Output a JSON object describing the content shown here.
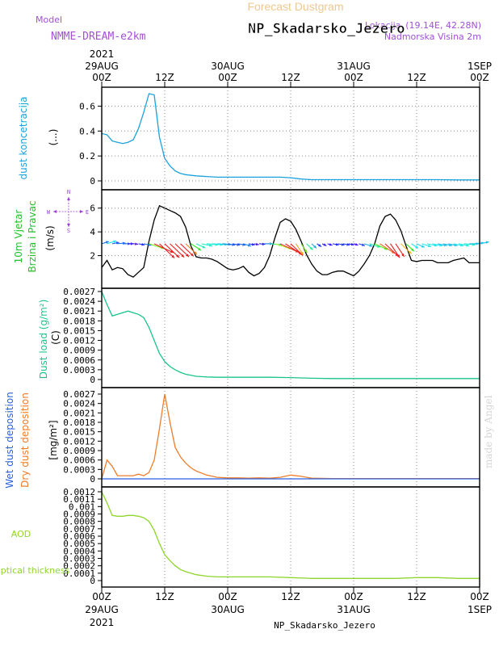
{
  "header": {
    "title_top": "Forecast Dustgram",
    "station": "NP_Skadarsko_Jezero",
    "model_label": "Model",
    "model_name": "NMME-DREAM-e2km",
    "location_prefix": "Lokacija",
    "coords": "(19.14E, 42.28N)",
    "altitude": "Nadmorska Visina 2m",
    "year": "2021",
    "credit": "made by Angel",
    "station_bottom": "NP_Skadarsko_Jezero"
  },
  "time_axis": {
    "ticks": [
      {
        "t": 0,
        "top": "00Z",
        "bottom": "29AUG"
      },
      {
        "t": 12,
        "top": "12Z",
        "bottom": ""
      },
      {
        "t": 24,
        "top": "00Z",
        "bottom": "30AUG"
      },
      {
        "t": 36,
        "top": "12Z",
        "bottom": ""
      },
      {
        "t": 48,
        "top": "00Z",
        "bottom": "31AUG"
      },
      {
        "t": 60,
        "top": "12Z",
        "bottom": ""
      },
      {
        "t": 72,
        "top": "00Z",
        "bottom": "1SEP"
      }
    ]
  },
  "colors": {
    "concentration": "#1ba3dd",
    "wind_speed": "#000000",
    "dust_load": "#19c48c",
    "dry_deposition": "#ee7d2b",
    "wet_deposition": "#2a62e0",
    "aod": "#8fd62c",
    "model_text": "#a34fd6",
    "title_top": "#f0c890",
    "wind_label": "#22c02a",
    "credit": "#d4d4d4",
    "compass": "#9b40d6"
  },
  "compass": {
    "n": "N",
    "s": "S",
    "w": "W",
    "e": "E"
  },
  "chart_data": [
    {
      "type": "line",
      "label": "dust koncetracija",
      "unit": "(...)",
      "ylim": [
        0,
        0.7
      ],
      "yticks": [
        "0",
        "0.2",
        "0.4",
        "0.6"
      ],
      "xlim": [
        0,
        72
      ],
      "x": [
        0,
        1,
        2,
        3,
        4,
        5,
        6,
        7,
        8,
        9,
        10,
        11,
        12,
        13,
        14,
        15,
        16,
        18,
        20,
        22,
        24,
        26,
        28,
        30,
        32,
        34,
        36,
        38,
        40,
        44,
        48,
        52,
        56,
        60,
        64,
        68,
        72
      ],
      "values": [
        0.38,
        0.37,
        0.32,
        0.31,
        0.3,
        0.31,
        0.33,
        0.42,
        0.55,
        0.7,
        0.69,
        0.35,
        0.18,
        0.12,
        0.08,
        0.06,
        0.05,
        0.04,
        0.035,
        0.03,
        0.03,
        0.03,
        0.03,
        0.03,
        0.03,
        0.03,
        0.025,
        0.015,
        0.01,
        0.01,
        0.01,
        0.01,
        0.01,
        0.01,
        0.01,
        0.008,
        0.008
      ]
    },
    {
      "type": "line",
      "label": "10m Vjetar Brzina i Pravac",
      "label_lines": [
        "10m Vjetar",
        "Brzina i Pravac"
      ],
      "unit": "(m/s)",
      "ylim": [
        0,
        7
      ],
      "yticks": [
        "2",
        "4",
        "6"
      ],
      "xlim": [
        0,
        72
      ],
      "x": [
        0,
        1,
        2,
        3,
        4,
        5,
        6,
        7,
        8,
        9,
        10,
        11,
        12,
        13,
        14,
        15,
        16,
        17,
        18,
        19,
        20,
        21,
        22,
        23,
        24,
        25,
        26,
        27,
        28,
        29,
        30,
        31,
        32,
        33,
        34,
        35,
        36,
        37,
        38,
        39,
        40,
        41,
        42,
        43,
        44,
        45,
        46,
        47,
        48,
        49,
        50,
        51,
        52,
        53,
        54,
        55,
        56,
        57,
        58,
        59,
        60,
        61,
        62,
        63,
        64,
        65,
        66,
        67,
        68,
        69,
        70,
        71,
        72
      ],
      "values": [
        1.0,
        1.6,
        0.8,
        1.0,
        0.9,
        0.4,
        0.2,
        0.6,
        1.0,
        3.2,
        5.0,
        6.2,
        6.0,
        5.8,
        5.6,
        5.3,
        4.4,
        2.8,
        1.9,
        1.8,
        1.8,
        1.7,
        1.5,
        1.2,
        0.9,
        0.8,
        0.9,
        1.1,
        0.6,
        0.3,
        0.5,
        1.0,
        2.0,
        3.5,
        4.8,
        5.1,
        4.9,
        4.2,
        3.2,
        2.1,
        1.3,
        0.7,
        0.4,
        0.4,
        0.6,
        0.7,
        0.7,
        0.5,
        0.3,
        0.7,
        1.3,
        2.0,
        3.0,
        4.5,
        5.3,
        5.5,
        5.0,
        4.1,
        2.8,
        1.6,
        1.5,
        1.6,
        1.6,
        1.6,
        1.4,
        1.4,
        1.4,
        1.6,
        1.7,
        1.8,
        1.4,
        1.4,
        1.4
      ],
      "wind_arrows": {
        "x": [
          0,
          1,
          2,
          3,
          4,
          5,
          6,
          7,
          8,
          9,
          10,
          11,
          12,
          13,
          14,
          15,
          16,
          17,
          18,
          19,
          20,
          21,
          22,
          23,
          24,
          25,
          26,
          27,
          28,
          29,
          30,
          31,
          32,
          33,
          34,
          35,
          36,
          37,
          38,
          39,
          40,
          41,
          42,
          43,
          44,
          45,
          46,
          47,
          48,
          49,
          50,
          51,
          52,
          53,
          54,
          55,
          56,
          57,
          58,
          59,
          60,
          61,
          62,
          63,
          64,
          65,
          66,
          67,
          68,
          69,
          70,
          71,
          72
        ],
        "dir_deg": [
          300,
          300,
          290,
          280,
          270,
          270,
          260,
          250,
          250,
          240,
          230,
          210,
          210,
          210,
          210,
          210,
          210,
          220,
          230,
          250,
          260,
          260,
          260,
          260,
          250,
          250,
          250,
          240,
          250,
          250,
          260,
          270,
          260,
          240,
          230,
          220,
          210,
          200,
          200,
          210,
          210,
          220,
          230,
          240,
          250,
          250,
          250,
          250,
          240,
          240,
          240,
          240,
          230,
          220,
          210,
          200,
          200,
          210,
          210,
          220,
          230,
          240,
          250,
          250,
          250,
          250,
          250,
          250,
          250,
          260,
          270,
          280,
          290
        ],
        "speed": [
          1.0,
          1.6,
          0.8,
          1.0,
          0.9,
          0.4,
          0.2,
          0.6,
          1.0,
          3.2,
          5.0,
          6.2,
          6.0,
          5.8,
          5.6,
          5.3,
          4.4,
          2.8,
          1.9,
          1.8,
          1.8,
          1.7,
          1.5,
          1.2,
          0.9,
          0.8,
          0.9,
          1.1,
          0.6,
          0.3,
          0.5,
          1.0,
          2.0,
          3.5,
          4.8,
          5.1,
          4.9,
          4.2,
          3.2,
          2.1,
          1.3,
          0.7,
          0.4,
          0.4,
          0.6,
          0.7,
          0.7,
          0.5,
          0.3,
          0.7,
          1.3,
          2.0,
          3.0,
          4.5,
          5.3,
          5.5,
          5.0,
          4.1,
          2.8,
          1.6,
          1.5,
          1.6,
          1.6,
          1.6,
          1.4,
          1.4,
          1.4,
          1.6,
          1.7,
          1.8,
          1.4,
          1.4,
          1.4
        ]
      }
    },
    {
      "type": "line",
      "label": "Dust load (g/m²)",
      "unit": "(C)",
      "ylim": [
        0,
        0.0027
      ],
      "yticks": [
        "0.0027",
        "0.0024",
        "0.0021",
        "0.0018",
        "0.0015",
        "0.0012",
        "0.0009",
        "0.0006",
        "0.0003",
        "0"
      ],
      "xlim": [
        0,
        72
      ],
      "x": [
        0,
        1,
        2,
        3,
        4,
        5,
        6,
        7,
        8,
        9,
        10,
        11,
        12,
        13,
        14,
        15,
        16,
        18,
        20,
        22,
        24,
        28,
        32,
        36,
        40,
        44,
        48,
        52,
        56,
        60,
        64,
        68,
        72
      ],
      "values": [
        0.0027,
        0.0023,
        0.00195,
        0.002,
        0.00205,
        0.0021,
        0.00205,
        0.002,
        0.0019,
        0.0016,
        0.0012,
        0.0008,
        0.00055,
        0.0004,
        0.0003,
        0.00022,
        0.00016,
        0.0001,
        8e-05,
        7e-05,
        7e-05,
        7e-05,
        7e-05,
        6e-05,
        4e-05,
        3e-05,
        3e-05,
        3e-05,
        3e-05,
        3e-05,
        3e-05,
        3e-05,
        3e-05
      ]
    },
    {
      "type": "line",
      "label": "Wet dust deposition / Dry dust deposition",
      "unit": "[mg/m²]",
      "label_wet": "Wet dust deposition",
      "label_dry": "Dry dust deposition",
      "ylim": [
        0,
        0.0027
      ],
      "yticks": [
        "0.0027",
        "0.0024",
        "0.0021",
        "0.0018",
        "0.0015",
        "0.0012",
        "0.0009",
        "0.0006",
        "0.0003",
        "0"
      ],
      "xlim": [
        0,
        72
      ],
      "series": [
        {
          "name": "Dry dust deposition",
          "x": [
            0,
            1,
            2,
            3,
            4,
            5,
            6,
            7,
            8,
            9,
            10,
            11,
            12,
            13,
            14,
            15,
            16,
            17,
            18,
            20,
            22,
            24,
            26,
            28,
            30,
            32,
            34,
            36,
            38,
            40,
            44,
            48,
            52,
            56,
            60,
            64,
            68,
            72
          ],
          "values": [
            0,
            0.0006,
            0.0004,
            0.0001,
            0.0001,
            0.0001,
            0.0001,
            0.00015,
            0.0001,
            0.0002,
            0.0006,
            0.0016,
            0.0027,
            0.0018,
            0.001,
            0.0007,
            0.0005,
            0.00035,
            0.00025,
            0.00012,
            5e-05,
            3e-05,
            3e-05,
            2e-05,
            3e-05,
            2e-05,
            5e-05,
            0.00012,
            8e-05,
            2e-05,
            1e-05,
            1e-05,
            1e-05,
            1e-05,
            1e-05,
            1e-05,
            1e-05,
            1e-05
          ]
        },
        {
          "name": "Wet dust deposition",
          "x": [
            0,
            72
          ],
          "values": [
            0,
            0
          ]
        }
      ]
    },
    {
      "type": "line",
      "label": "AOD",
      "label2": "optical thickness",
      "ylim": [
        0,
        0.0012
      ],
      "yticks": [
        "0.0012",
        "0.0011",
        "0.001",
        "0.0009",
        "0.0008",
        "0.0007",
        "0.0006",
        "0.0005",
        "0.0004",
        "0.0003",
        "0.0002",
        "0.0001",
        "0"
      ],
      "xlim": [
        0,
        72
      ],
      "x": [
        0,
        1,
        2,
        3,
        4,
        5,
        6,
        7,
        8,
        9,
        10,
        11,
        12,
        13,
        14,
        15,
        16,
        18,
        20,
        22,
        24,
        28,
        32,
        36,
        40,
        44,
        48,
        52,
        56,
        60,
        64,
        68,
        72
      ],
      "values": [
        0.0012,
        0.00105,
        0.00088,
        0.00087,
        0.00087,
        0.00088,
        0.00088,
        0.00087,
        0.00085,
        0.0008,
        0.00068,
        0.0005,
        0.00035,
        0.00027,
        0.0002,
        0.00015,
        0.00012,
        8e-05,
        6e-05,
        5e-05,
        5e-05,
        5e-05,
        5e-05,
        4e-05,
        3e-05,
        3e-05,
        3e-05,
        3e-05,
        3e-05,
        4e-05,
        4e-05,
        3e-05,
        3e-05
      ]
    }
  ]
}
